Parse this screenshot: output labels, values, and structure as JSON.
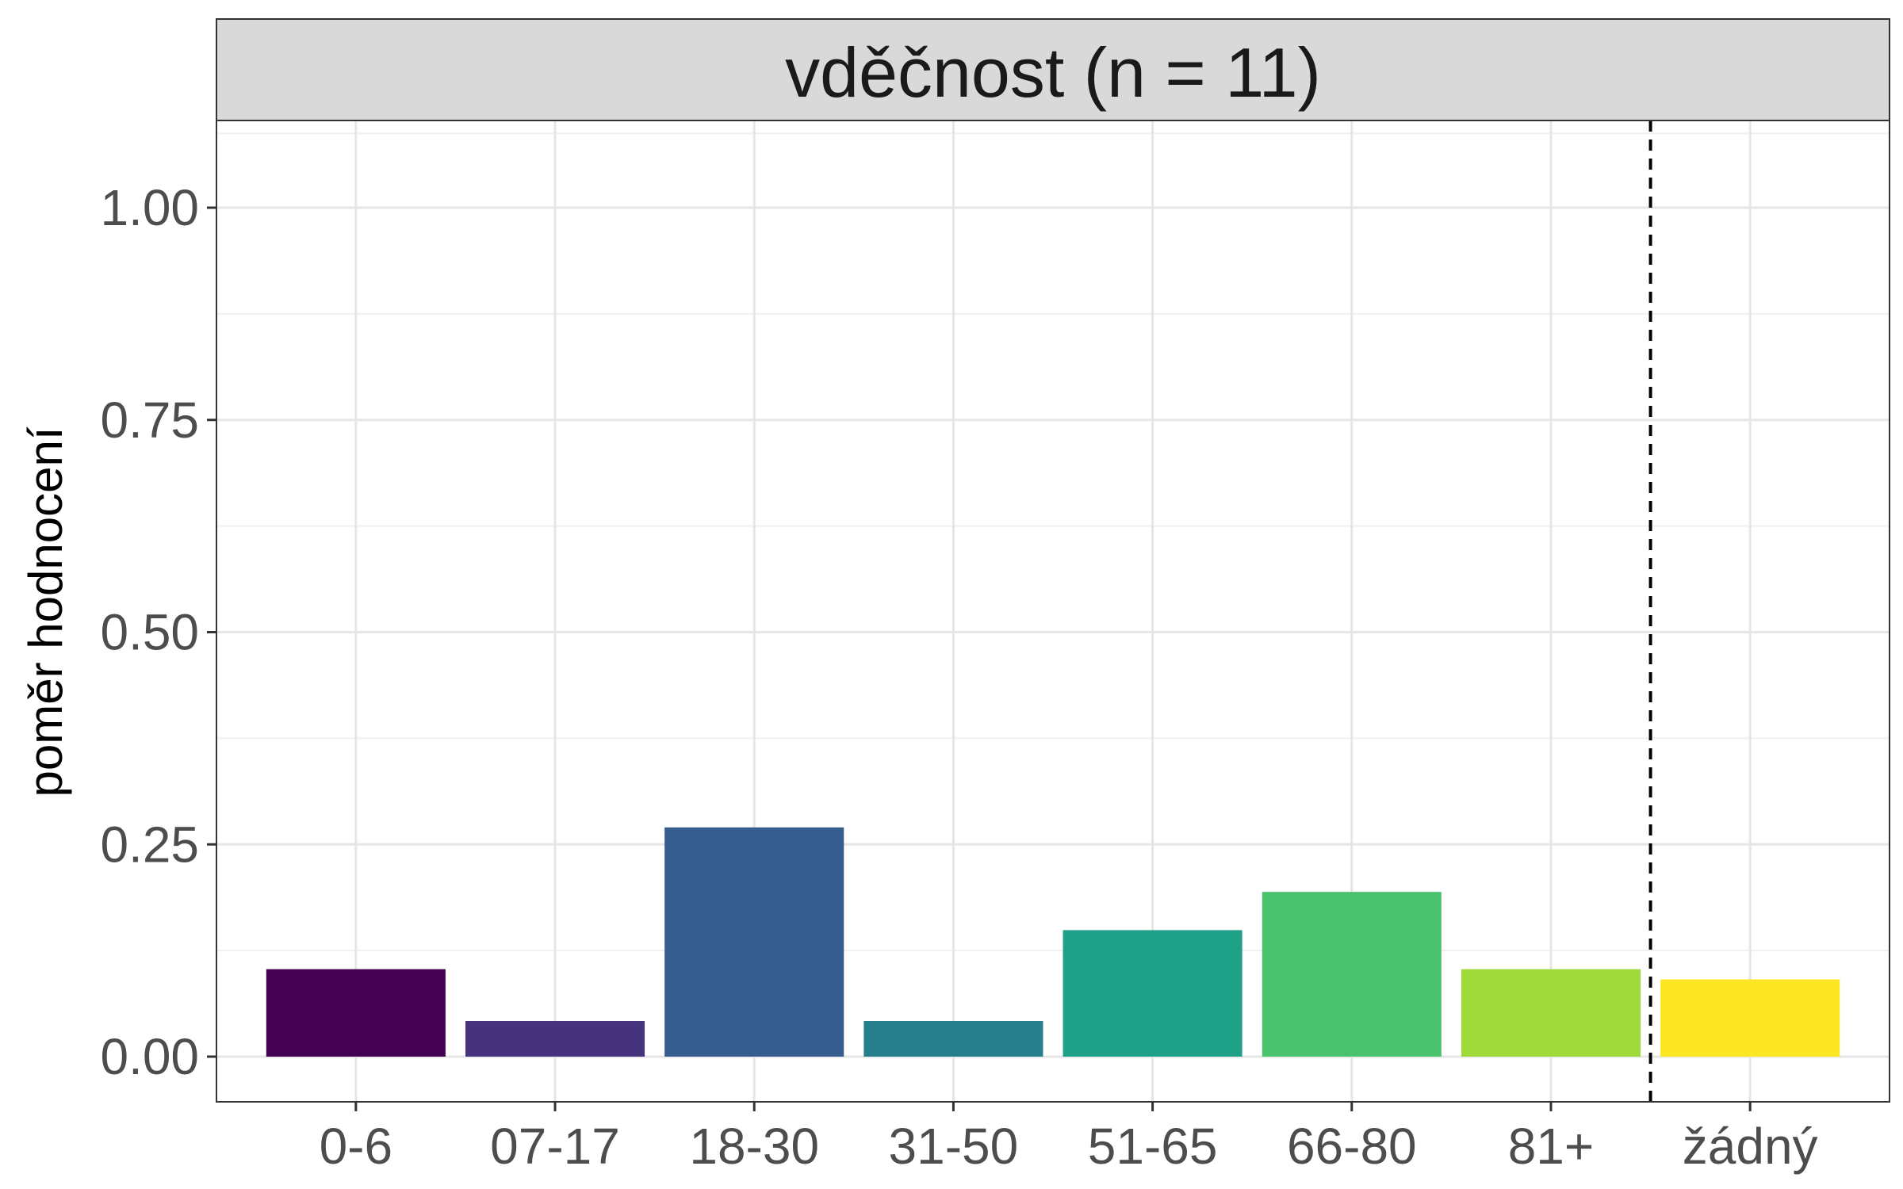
{
  "chart_data": {
    "type": "bar",
    "title": "vděčnost (n = 11)",
    "xlabel": "",
    "ylabel": "poměr hodnocení",
    "categories": [
      "0-6",
      "07-17",
      "18-30",
      "31-50",
      "51-65",
      "66-80",
      "81+",
      "žádný"
    ],
    "values": [
      0.103,
      0.042,
      0.27,
      0.042,
      0.149,
      0.194,
      0.103,
      0.091
    ],
    "colors": [
      "#440154",
      "#46337E",
      "#365C8D",
      "#277F8E",
      "#1FA187",
      "#4AC16D",
      "#9FDA3A",
      "#FDE725"
    ],
    "ylim": [
      0,
      1.1
    ],
    "yticks": [
      0,
      0.25,
      0.5,
      0.75,
      1.0
    ],
    "ytick_labels": [
      "0.00",
      "0.25",
      "0.50",
      "0.75",
      "1.00"
    ],
    "ygrid_minor": [
      0.125,
      0.375,
      0.625,
      0.875,
      1.0875
    ],
    "reference_line": {
      "after_category": "81+",
      "style": "dashed"
    },
    "grid": true,
    "legend": "none"
  }
}
